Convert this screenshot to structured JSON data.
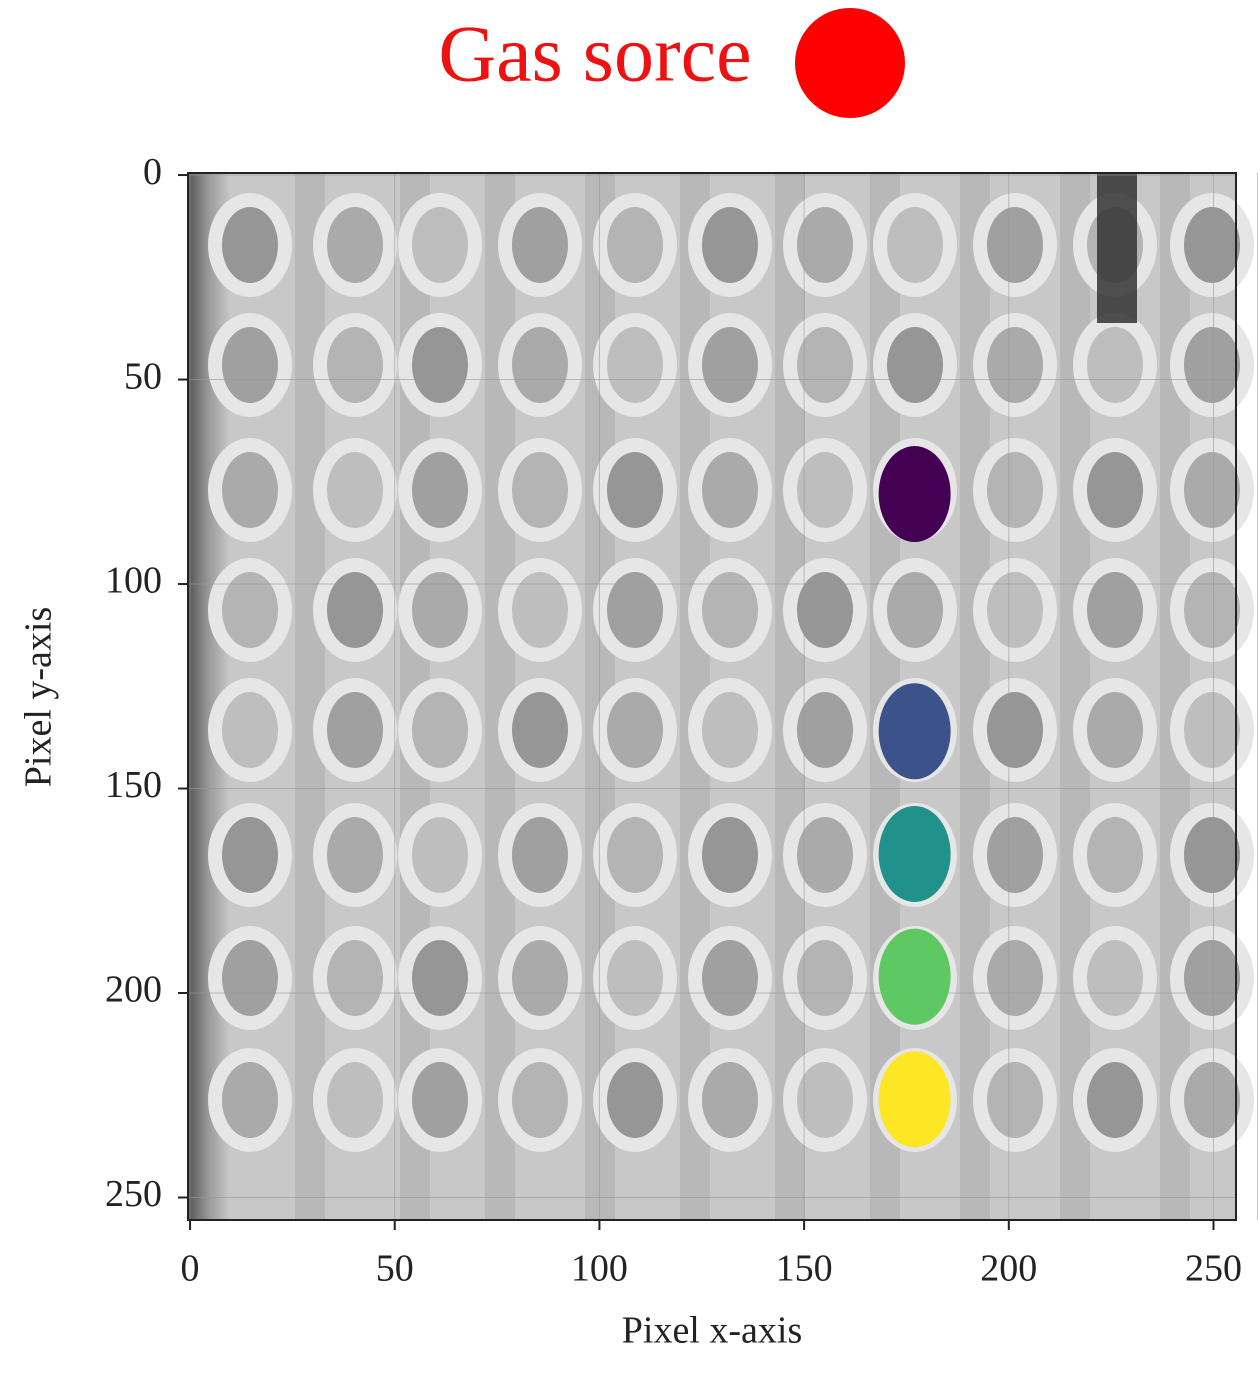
{
  "chart_data": {
    "type": "scatter",
    "title": "Gas sorce",
    "title_marker_color": "#ff0000",
    "xlabel": "Pixel x-axis",
    "ylabel": "Pixel y-axis",
    "x": [
      177,
      177,
      177,
      177,
      177
    ],
    "values": [
      78,
      136,
      166,
      196,
      226
    ],
    "colors": [
      "#440154",
      "#3b528b",
      "#21918c",
      "#5ec962",
      "#fde725"
    ],
    "xlim": [
      -0.5,
      255.5
    ],
    "ylim": [
      255.5,
      -0.5
    ],
    "xticks": [
      0,
      50,
      100,
      150,
      200,
      250
    ],
    "yticks": [
      0,
      50,
      100,
      150,
      200,
      250
    ],
    "grid": true
  }
}
